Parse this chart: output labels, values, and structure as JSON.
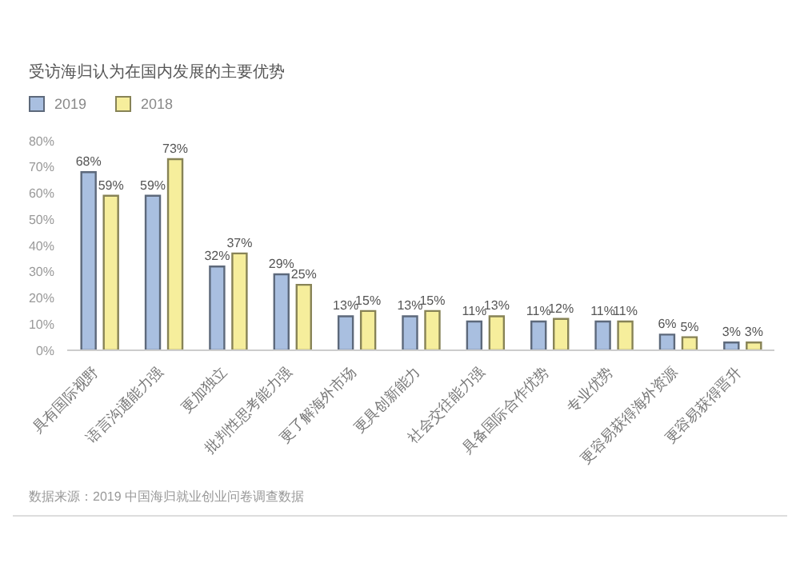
{
  "chart_data": {
    "type": "bar",
    "title": "受访海归认为在国内发展的主要优势",
    "categories": [
      "具有国际视野",
      "语言沟通能力强",
      "更加独立",
      "批判性思考能力强",
      "更了解海外市场",
      "更具创新能力",
      "社会交往能力强",
      "具备国际合作优势",
      "专业优势",
      "更容易获得海外资源",
      "更容易获得晋升"
    ],
    "series": [
      {
        "name": "2019",
        "color": "#a9bfe0",
        "values": [
          68,
          59,
          32,
          29,
          13,
          13,
          11,
          11,
          11,
          6,
          3
        ],
        "value_labels": [
          "68%",
          "59%",
          "32%",
          "29%",
          "13%",
          "13%",
          "11%",
          "11%",
          "11%",
          "6%",
          "3%"
        ]
      },
      {
        "name": "2018",
        "color": "#f6ee9c",
        "values": [
          59,
          73,
          37,
          25,
          15,
          15,
          13,
          12,
          11,
          5,
          3
        ],
        "value_labels": [
          "59%",
          "73%",
          "37%",
          "25%",
          "15%",
          "15%",
          "13%",
          "12%",
          "11%",
          "5%",
          "3%"
        ]
      }
    ],
    "ylim": [
      0,
      80
    ],
    "yticks": [
      {
        "value": 0,
        "label": "0%"
      },
      {
        "value": 10,
        "label": "10%"
      },
      {
        "value": 20,
        "label": "20%"
      },
      {
        "value": 30,
        "label": "30%"
      },
      {
        "value": 40,
        "label": "40%"
      },
      {
        "value": 50,
        "label": "50%"
      },
      {
        "value": 60,
        "label": "60%"
      },
      {
        "value": 70,
        "label": "70%"
      },
      {
        "value": 80,
        "label": "80%"
      }
    ],
    "legend": "top left",
    "annotations": [
      "数据来源：2019 中国海归就业创业问卷调查数据"
    ]
  }
}
